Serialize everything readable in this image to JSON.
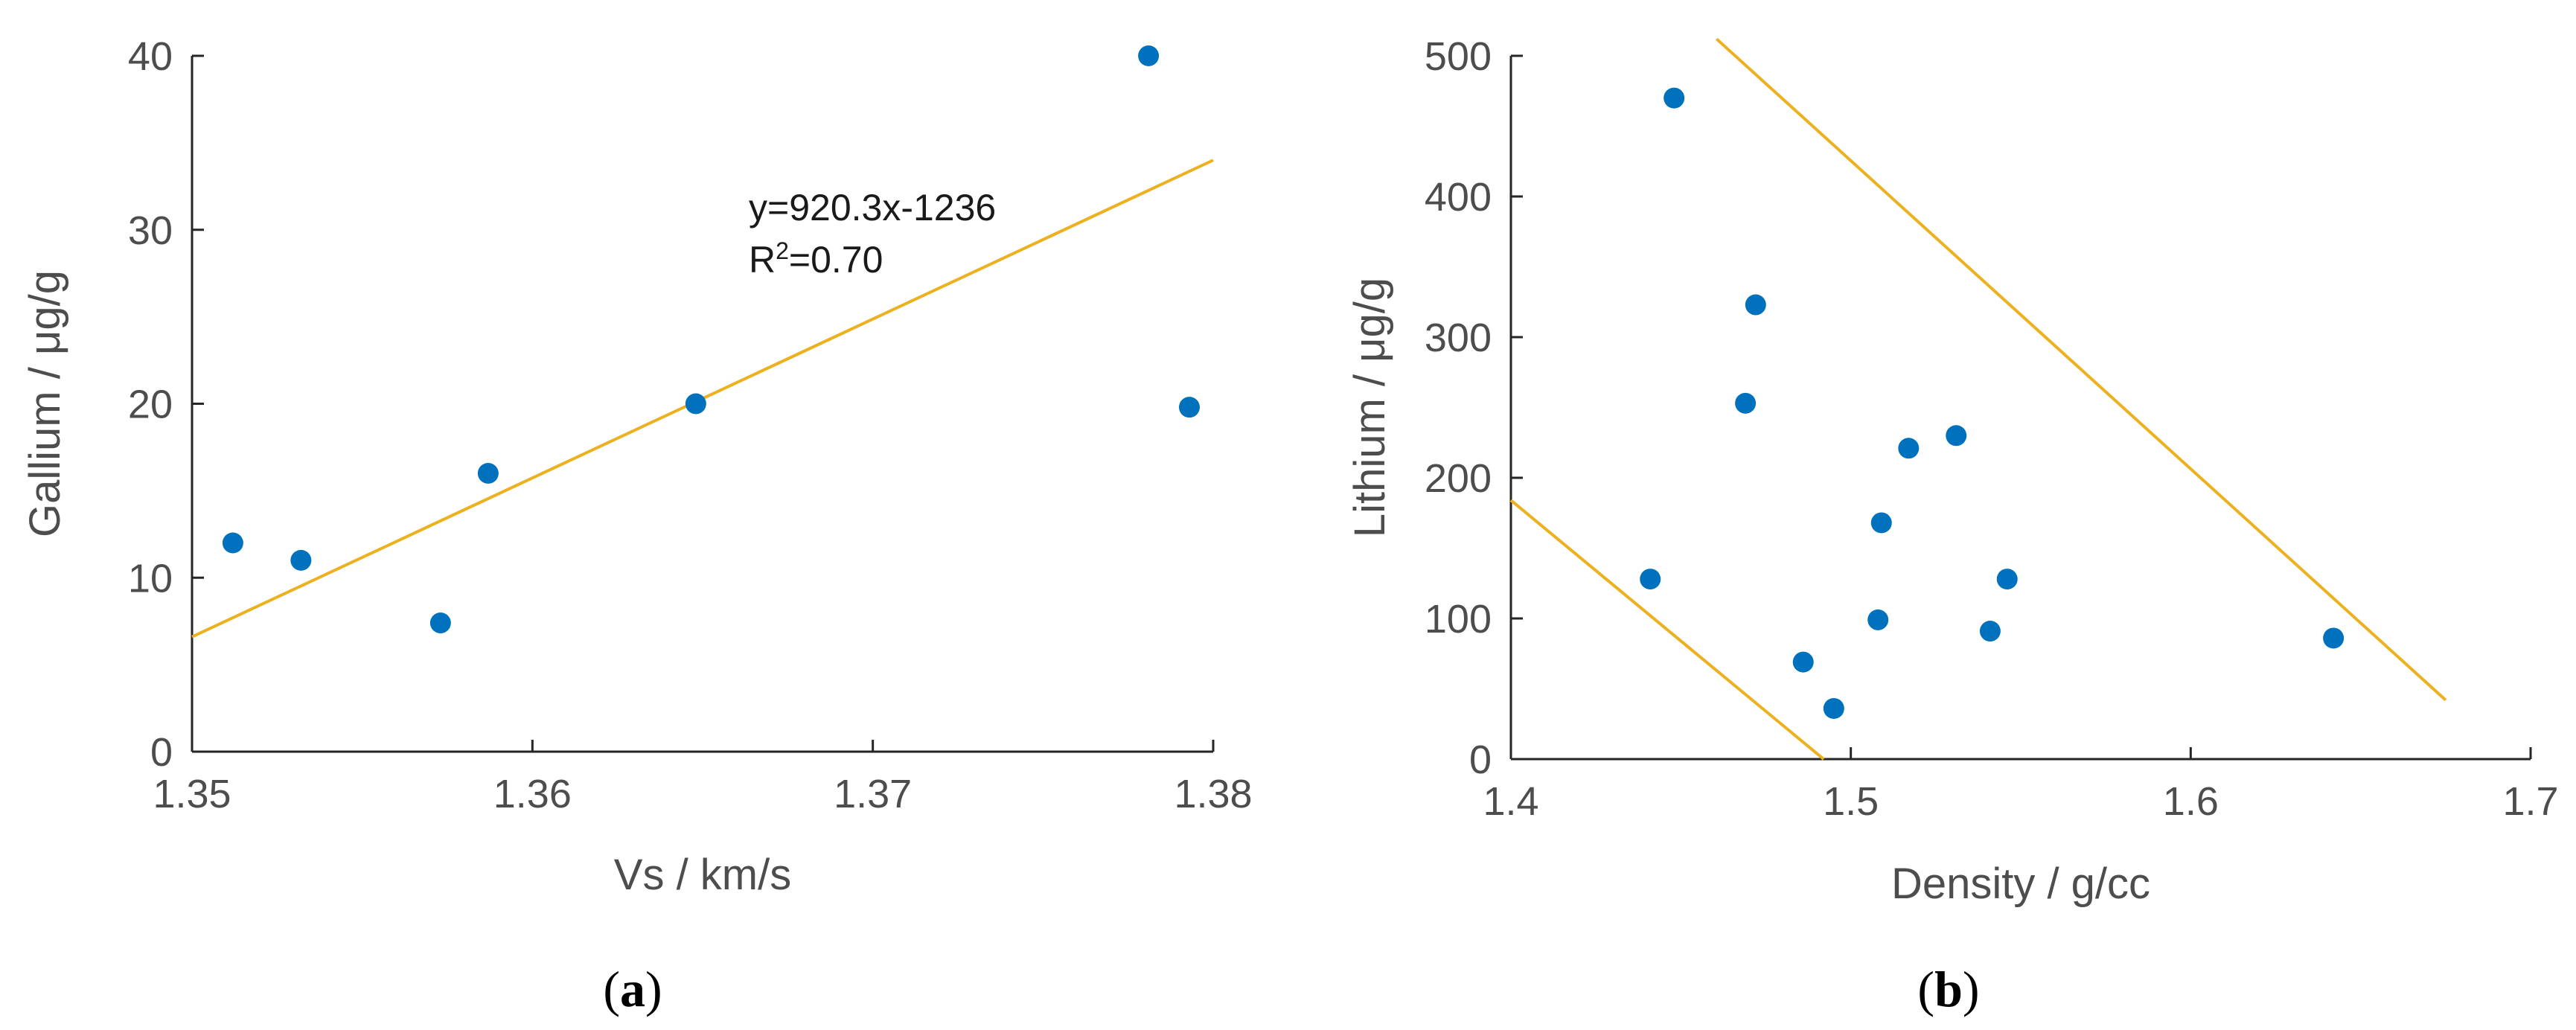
{
  "colors": {
    "points": "#0072BD",
    "lines": "#EDB120",
    "axes": "#262626",
    "text": "#4d4d4d"
  },
  "chart_data": [
    {
      "type": "scatter",
      "panel_label": {
        "open": "(",
        "letter": "a",
        "close": ")"
      },
      "title": "",
      "xlabel": "Vs / km/s",
      "ylabel": "Gallium / μg/g",
      "xlim": [
        1.35,
        1.38
      ],
      "ylim": [
        0,
        40
      ],
      "x_ticks": [
        1.35,
        1.36,
        1.37,
        1.38
      ],
      "x_tick_labels": [
        "1.35",
        "1.36",
        "1.37",
        "1.38"
      ],
      "y_ticks": [
        0,
        10,
        20,
        30,
        40
      ],
      "y_tick_labels": [
        "0",
        "10",
        "20",
        "30",
        "40"
      ],
      "grid": false,
      "series": [
        {
          "x": [
            1.3512,
            1.3532,
            1.3573,
            1.3587,
            1.3648,
            1.3781,
            1.3793
          ],
          "y": [
            12.0,
            11.0,
            7.4,
            16.0,
            20.0,
            40.0,
            19.8
          ]
        }
      ],
      "lines": [
        {
          "x": [
            1.35,
            1.38
          ],
          "y": [
            6.6,
            34.0
          ]
        }
      ],
      "annotation": {
        "equation": "y=920.3x-1236",
        "r2_prefix": "R",
        "r2_sup": "2",
        "r2_value": "=0.70"
      }
    },
    {
      "type": "scatter",
      "panel_label": {
        "open": "(",
        "letter": "b",
        "close": ")"
      },
      "title": "",
      "xlabel": "Density / g/cc",
      "ylabel": "Lithium / μg/g",
      "xlim": [
        1.4,
        1.7
      ],
      "ylim": [
        0,
        500
      ],
      "x_ticks": [
        1.4,
        1.5,
        1.6,
        1.7
      ],
      "x_tick_labels": [
        "1.4",
        "1.5",
        "1.6",
        "1.7"
      ],
      "y_ticks": [
        0,
        100,
        200,
        300,
        400,
        500
      ],
      "y_tick_labels": [
        "0",
        "100",
        "200",
        "300",
        "400",
        "500"
      ],
      "grid": false,
      "series": [
        {
          "x": [
            1.441,
            1.448,
            1.469,
            1.472,
            1.486,
            1.495,
            1.508,
            1.509,
            1.517,
            1.531,
            1.541,
            1.546,
            1.642
          ],
          "y": [
            128,
            470,
            253,
            323,
            69,
            36,
            99,
            168,
            221,
            230,
            91,
            128,
            86
          ]
        }
      ],
      "lines": [
        {
          "x": [
            1.4,
            1.492
          ],
          "y": [
            184,
            0
          ]
        },
        {
          "x": [
            1.4605,
            1.675
          ],
          "y": [
            512,
            42
          ]
        }
      ]
    }
  ]
}
